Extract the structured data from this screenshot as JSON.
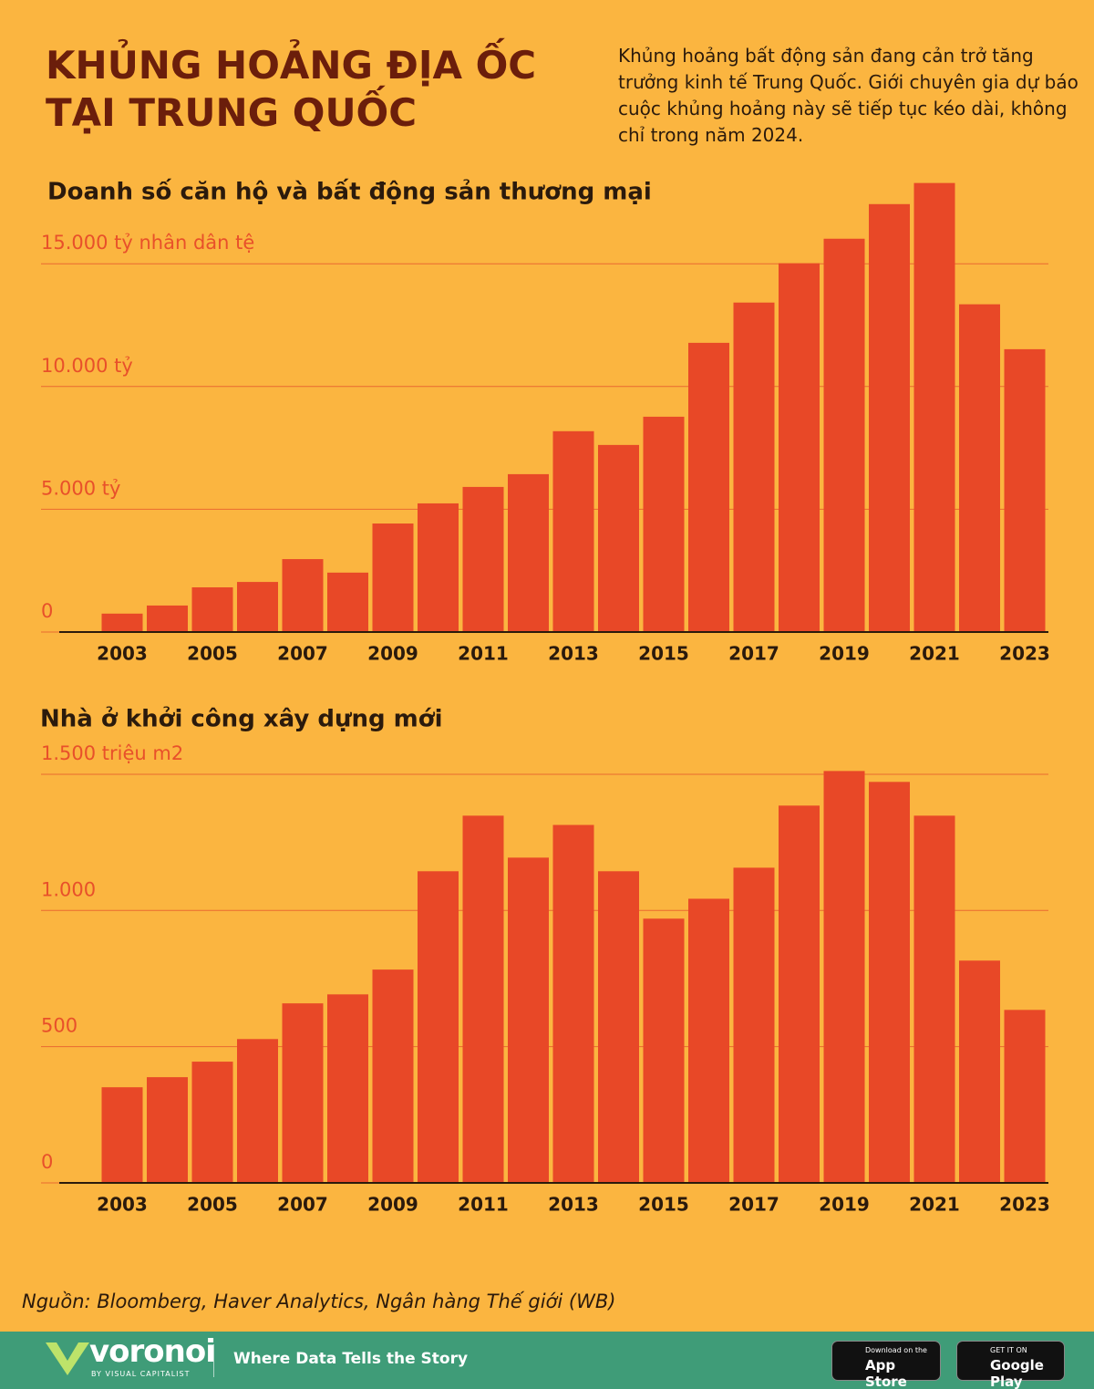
{
  "title": [
    "KHỦNG HOẢNG ĐỊA ỐC",
    "TẠI TRUNG QUỐC"
  ],
  "description": "Khủng hoảng bất động sản đang cản trở tăng trưởng kinh tế Trung Quốc. Giới chuyên gia dự báo cuộc khủng hoảng này sẽ tiếp tục kéo dài, không chỉ trong năm 2024.",
  "source": "Nguồn: Bloomberg, Haver Analytics, Ngân hàng Thế giới (WB)",
  "footer": {
    "brand": "voronoi",
    "by": "BY VISUAL CAPITALIST",
    "tagline": "Where Data Tells the Story",
    "app_store": {
      "small": "Download on the",
      "big": "App Store"
    },
    "google_play": {
      "small": "GET IT ON",
      "big": "Google Play"
    }
  },
  "chart_data": [
    {
      "type": "bar",
      "title": "Doanh số căn hộ và bất động sản thương mại",
      "color": "#e84827",
      "categories": [
        "2003",
        null,
        "2005",
        null,
        "2007",
        null,
        "2009",
        null,
        "2011",
        null,
        "2013",
        null,
        "2015",
        null,
        "2017",
        null,
        "2019",
        null,
        "2021",
        null,
        "2023"
      ],
      "values": [
        750,
        1080,
        1820,
        2040,
        2970,
        2420,
        4420,
        5240,
        5910,
        6430,
        8180,
        7620,
        8770,
        11780,
        13420,
        15020,
        16020,
        17430,
        18290,
        13350,
        11520
      ],
      "ylim": [
        0,
        18500
      ],
      "yticks": [
        0,
        {
          "value": 5000,
          "label": "5.000 tỷ"
        },
        {
          "value": 10000,
          "label": "10.000 tỷ"
        },
        {
          "value": 15000,
          "label": "15.000 tỷ nhân dân tệ"
        }
      ],
      "grid": true
    },
    {
      "type": "bar",
      "title": "Nhà ở khởi công xây dựng mới",
      "color": "#e84827",
      "categories": [
        "2003",
        null,
        "2005",
        null,
        "2007",
        null,
        "2009",
        null,
        "2011",
        null,
        "2013",
        null,
        "2015",
        null,
        "2017",
        null,
        "2019",
        null,
        "2021",
        null,
        "2023"
      ],
      "values": [
        351,
        388,
        445,
        528,
        659,
        692,
        783,
        1144,
        1348,
        1194,
        1314,
        1144,
        970,
        1043,
        1157,
        1385,
        1512,
        1472,
        1348,
        816,
        635
      ],
      "ylim": [
        0,
        1530
      ],
      "yticks": [
        0,
        500,
        {
          "value": 1000,
          "label": "1.000"
        },
        {
          "value": 1500,
          "label": "1.500 triệu m2"
        }
      ],
      "grid": true
    }
  ]
}
